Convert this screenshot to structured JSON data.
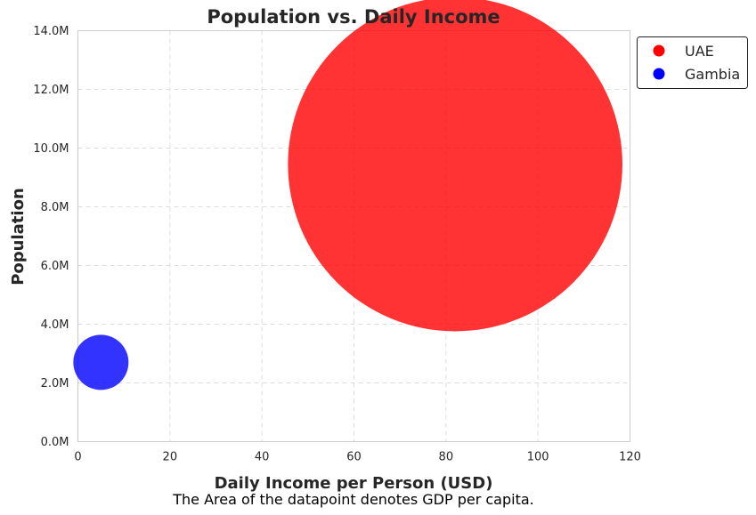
{
  "chart_data": {
    "type": "scatter",
    "title": "Population vs. Daily Income",
    "xlabel": "Daily Income per Person (USD)",
    "ylabel": "Population",
    "caption": "The Area of the datapoint denotes GDP per capita.",
    "xlim": [
      0,
      120
    ],
    "ylim": [
      0,
      14000000
    ],
    "xticks": [
      0,
      20,
      40,
      60,
      80,
      100,
      120
    ],
    "xtick_labels": [
      "0",
      "20",
      "40",
      "60",
      "80",
      "100",
      "120"
    ],
    "yticks": [
      0,
      2000000,
      4000000,
      6000000,
      8000000,
      10000000,
      12000000,
      14000000
    ],
    "ytick_labels": [
      "0.0M",
      "2.0M",
      "4.0M",
      "6.0M",
      "8.0M",
      "10.0M",
      "12.0M",
      "14.0M"
    ],
    "grid": true,
    "legend_position": "outside-top-right",
    "series": [
      {
        "name": "UAE",
        "color": "#ff0000",
        "x": 82,
        "y": 9450000,
        "size": 36.7
      },
      {
        "name": "Gambia",
        "color": "#0000ff",
        "x": 5,
        "y": 2700000,
        "size": 1
      }
    ]
  }
}
